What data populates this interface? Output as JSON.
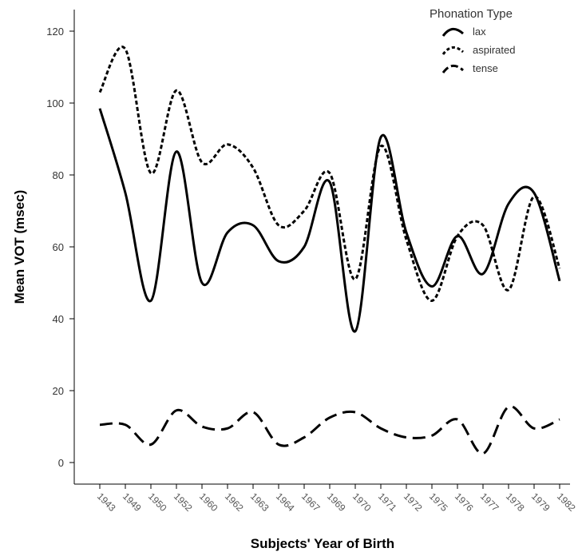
{
  "chart_data": {
    "type": "line",
    "xlabel": "Subjects' Year of Birth",
    "ylabel": "Mean VOT (msec)",
    "ylim": [
      -6,
      126
    ],
    "yticks": [
      0,
      20,
      40,
      60,
      80,
      100,
      120
    ],
    "categories": [
      "1943",
      "1949",
      "1950",
      "1952",
      "1960",
      "1962",
      "1963",
      "1964",
      "1967",
      "1969",
      "1970",
      "1971",
      "1972",
      "1975",
      "1976",
      "1977",
      "1978",
      "1979",
      "1982"
    ],
    "legend": {
      "title": "Phonation Type",
      "position": "top-right"
    },
    "series": [
      {
        "name": "lax",
        "values": [
          98.5,
          75,
          45,
          86.5,
          50,
          64,
          66,
          56,
          60,
          78,
          36.5,
          90.5,
          64,
          49,
          63,
          52.5,
          72,
          75,
          50.5
        ]
      },
      {
        "name": "aspirated",
        "values": [
          103,
          115,
          80.5,
          103.5,
          83.5,
          88.5,
          82,
          66,
          70,
          80.5,
          51,
          88,
          62,
          45,
          63,
          66,
          48,
          74,
          54
        ]
      },
      {
        "name": "tense",
        "values": [
          10.5,
          10.5,
          5,
          14.5,
          10,
          9.5,
          14,
          5,
          7,
          12.5,
          14,
          9.5,
          7,
          7.5,
          12,
          2.5,
          15.5,
          9.5,
          12
        ]
      }
    ]
  }
}
